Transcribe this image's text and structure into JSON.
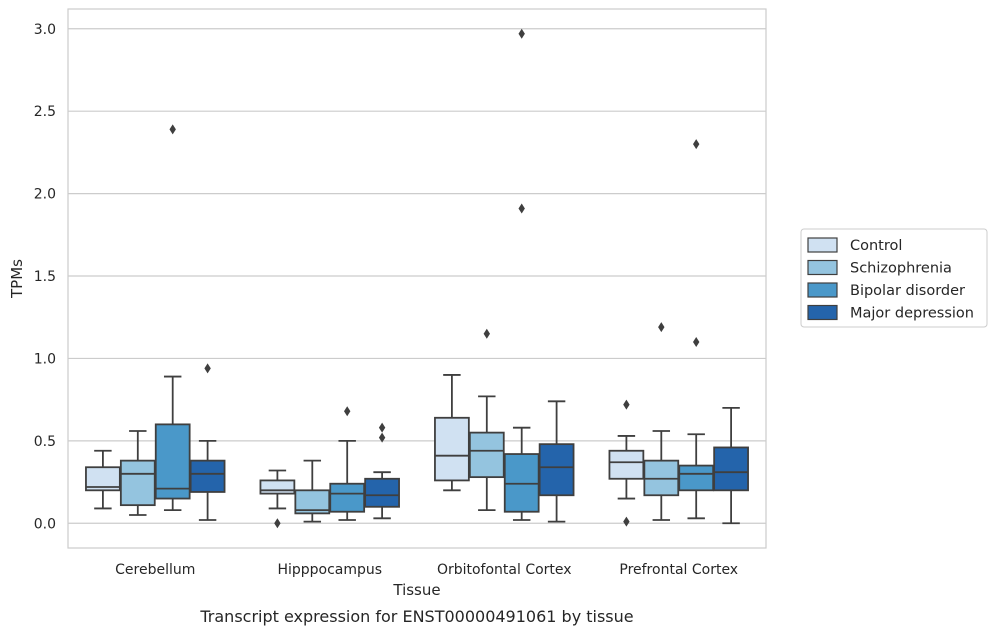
{
  "chart_data": {
    "type": "box",
    "caption": "Transcript expression for ENST00000491061 by tissue",
    "xlabel": "Tissue",
    "ylabel": "TPMs",
    "ylim": [
      -0.15,
      3.12
    ],
    "yticks": [
      0.0,
      0.5,
      1.0,
      1.5,
      2.0,
      2.5,
      3.0
    ],
    "ytick_labels": [
      "0.0",
      "0.5",
      "1.0",
      "1.5",
      "2.0",
      "2.5",
      "3.0"
    ],
    "grid": "horizontal",
    "legend_position": "right",
    "categories": [
      "Cerebellum",
      "Hipppocampus",
      "Orbitofontal Cortex",
      "Prefrontal Cortex"
    ],
    "series": [
      {
        "name": "Control",
        "color": "#d0e1f2",
        "boxes": [
          {
            "whislo": 0.09,
            "q1": 0.2,
            "med": 0.22,
            "q3": 0.34,
            "whishi": 0.44,
            "fliers": []
          },
          {
            "whislo": 0.09,
            "q1": 0.18,
            "med": 0.2,
            "q3": 0.26,
            "whishi": 0.32,
            "fliers": [
              0.0
            ]
          },
          {
            "whislo": 0.2,
            "q1": 0.26,
            "med": 0.41,
            "q3": 0.64,
            "whishi": 0.9,
            "fliers": []
          },
          {
            "whislo": 0.15,
            "q1": 0.27,
            "med": 0.37,
            "q3": 0.44,
            "whishi": 0.53,
            "fliers": [
              0.72,
              0.01
            ]
          }
        ]
      },
      {
        "name": "Schizophrenia",
        "color": "#94c4df",
        "boxes": [
          {
            "whislo": 0.05,
            "q1": 0.11,
            "med": 0.3,
            "q3": 0.38,
            "whishi": 0.56,
            "fliers": []
          },
          {
            "whislo": 0.01,
            "q1": 0.06,
            "med": 0.08,
            "q3": 0.2,
            "whishi": 0.38,
            "fliers": []
          },
          {
            "whislo": 0.08,
            "q1": 0.28,
            "med": 0.44,
            "q3": 0.55,
            "whishi": 0.77,
            "fliers": [
              1.15
            ]
          },
          {
            "whislo": 0.02,
            "q1": 0.17,
            "med": 0.27,
            "q3": 0.38,
            "whishi": 0.56,
            "fliers": [
              1.19
            ]
          }
        ]
      },
      {
        "name": "Bipolar disorder",
        "color": "#4a98c9",
        "boxes": [
          {
            "whislo": 0.08,
            "q1": 0.15,
            "med": 0.21,
            "q3": 0.6,
            "whishi": 0.89,
            "fliers": [
              2.39
            ]
          },
          {
            "whislo": 0.02,
            "q1": 0.07,
            "med": 0.18,
            "q3": 0.24,
            "whishi": 0.5,
            "fliers": [
              0.68
            ]
          },
          {
            "whislo": 0.02,
            "q1": 0.07,
            "med": 0.24,
            "q3": 0.42,
            "whishi": 0.58,
            "fliers": [
              2.97,
              1.91
            ]
          },
          {
            "whislo": 0.03,
            "q1": 0.2,
            "med": 0.3,
            "q3": 0.35,
            "whishi": 0.54,
            "fliers": [
              1.1,
              2.3
            ]
          }
        ]
      },
      {
        "name": "Major depression",
        "color": "#2464ab",
        "boxes": [
          {
            "whislo": 0.02,
            "q1": 0.19,
            "med": 0.3,
            "q3": 0.38,
            "whishi": 0.5,
            "fliers": [
              0.94
            ]
          },
          {
            "whislo": 0.03,
            "q1": 0.1,
            "med": 0.17,
            "q3": 0.27,
            "whishi": 0.31,
            "fliers": [
              0.58,
              0.52
            ]
          },
          {
            "whislo": 0.01,
            "q1": 0.17,
            "med": 0.34,
            "q3": 0.48,
            "whishi": 0.74,
            "fliers": []
          },
          {
            "whislo": 0.0,
            "q1": 0.2,
            "med": 0.31,
            "q3": 0.46,
            "whishi": 0.7,
            "fliers": []
          }
        ]
      }
    ]
  }
}
